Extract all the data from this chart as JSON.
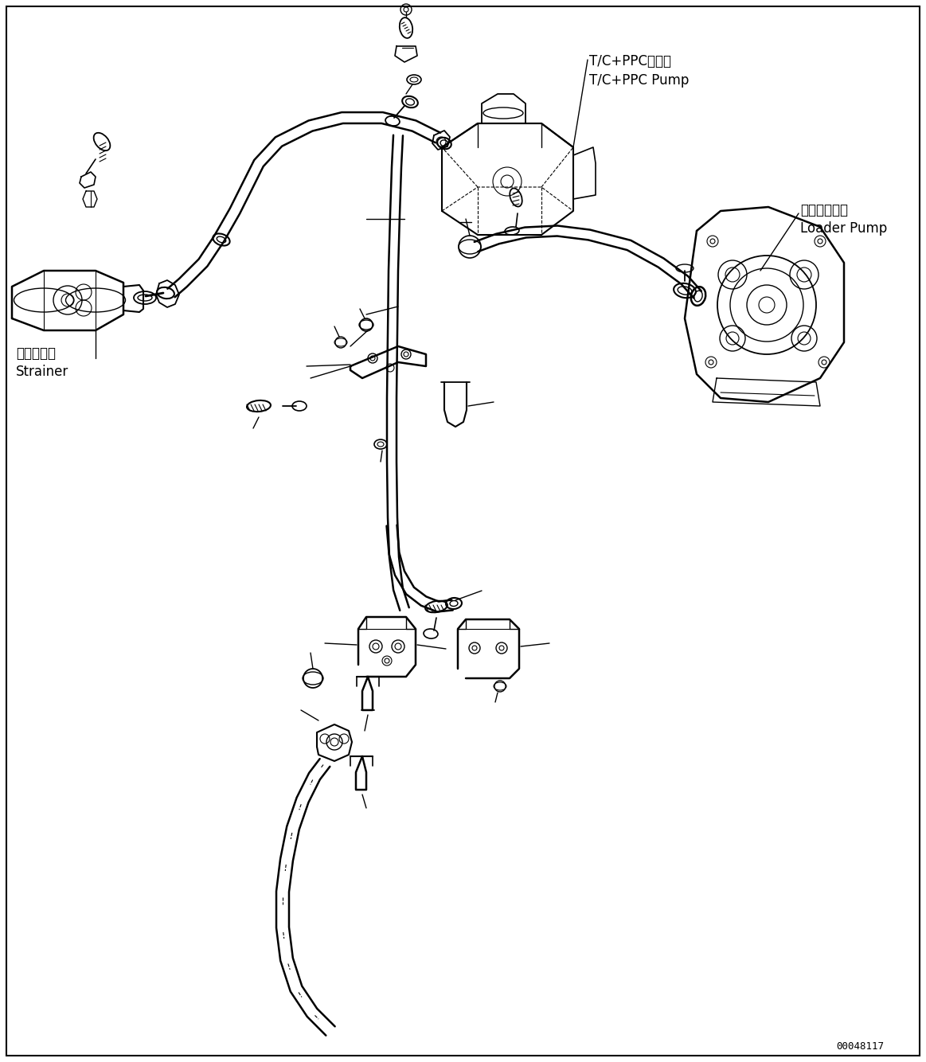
{
  "bg_color": "#ffffff",
  "line_color": "#000000",
  "fig_width": 11.63,
  "fig_height": 13.34,
  "label_tc_pump_ja": "T/C+PPCポンプ",
  "label_tc_pump_en": "T/C+PPC Pump",
  "label_loader_pump_ja": "ローダポンプ",
  "label_loader_pump_en": "Loader Pump",
  "label_strainer_ja": "ストレーナ",
  "label_strainer_en": "Strainer",
  "part_number": "00048117",
  "font_size_label": 12,
  "font_size_part": 9
}
